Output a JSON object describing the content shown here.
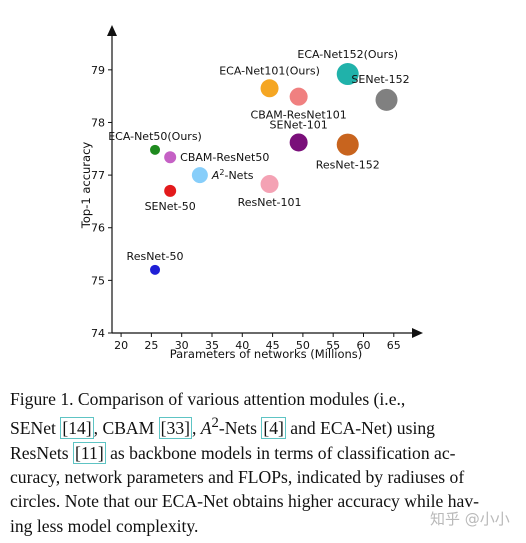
{
  "chart_data": {
    "type": "scatter",
    "title": "",
    "xlabel": "Parameters of networks (Millions)",
    "ylabel": "Top-1 accuracy",
    "xlim": [
      18.5,
      68.5
    ],
    "ylim": [
      74,
      79.7
    ],
    "xticks": [
      20,
      25,
      30,
      35,
      40,
      45,
      50,
      55,
      60,
      65
    ],
    "yticks": [
      74,
      75,
      76,
      77,
      78,
      79
    ],
    "grid": false,
    "points": [
      {
        "label": "ResNet-50",
        "x": 25.6,
        "y": 75.2,
        "size": 5,
        "color": "#1f1fd6",
        "label_pos": "above"
      },
      {
        "label": "SENet-50",
        "x": 28.1,
        "y": 76.7,
        "size": 6,
        "color": "#e31a1c",
        "label_pos": "below"
      },
      {
        "label": "ECA-Net50(Ours)",
        "x": 25.6,
        "y": 77.48,
        "size": 5,
        "color": "#1e8a1e",
        "label_pos": "above"
      },
      {
        "label": "CBAM-ResNet50",
        "x": 28.1,
        "y": 77.34,
        "size": 6,
        "color": "#c561c5",
        "label_pos": "right"
      },
      {
        "label": "A²-Nets",
        "x": 33.0,
        "y": 77.0,
        "size": 8,
        "color": "#87cefa",
        "label_pos": "right"
      },
      {
        "label": "ResNet-101",
        "x": 44.5,
        "y": 76.83,
        "size": 9,
        "color": "#f4a2b4",
        "label_pos": "below"
      },
      {
        "label": "SENet-101",
        "x": 49.3,
        "y": 77.62,
        "size": 9,
        "color": "#7a0f7a",
        "label_pos": "above"
      },
      {
        "label": "ECA-Net101(Ours)",
        "x": 44.5,
        "y": 78.65,
        "size": 9,
        "color": "#f5a623",
        "label_pos": "above"
      },
      {
        "label": "CBAM-ResNet101",
        "x": 49.3,
        "y": 78.49,
        "size": 9,
        "color": "#f08080",
        "label_pos": "below"
      },
      {
        "label": "ResNet-152",
        "x": 57.4,
        "y": 77.58,
        "size": 11,
        "color": "#c8641e",
        "label_pos": "below"
      },
      {
        "label": "ECA-Net152(Ours)",
        "x": 57.4,
        "y": 78.92,
        "size": 11,
        "color": "#20b2aa",
        "label_pos": "above"
      },
      {
        "label": "SENet-152",
        "x": 63.8,
        "y": 78.43,
        "size": 11,
        "color": "#808080",
        "label_pos": "above-right"
      }
    ]
  },
  "caption": {
    "l1": "Figure 1. Comparison of various attention modules (i.e.,",
    "l2a": "SENet ",
    "r14": "[14]",
    "l2b": ", CBAM ",
    "r33": "[33]",
    "l2c": ", ",
    "a2": "A",
    "a2sup": "2",
    "l2d": "-Nets ",
    "r4": "[4]",
    "l2e": " and ECA-Net) using",
    "l3a": "ResNets ",
    "r11": "[11]",
    "l3b": " as backbone models in terms of classification ac-",
    "l4": "curacy, network parameters and FLOPs, indicated by radiuses of",
    "l5": "circles. Note that our ECA-Net obtains higher accuracy while hav-",
    "l6": "ing less model complexity."
  },
  "watermark": "知乎 @小小"
}
